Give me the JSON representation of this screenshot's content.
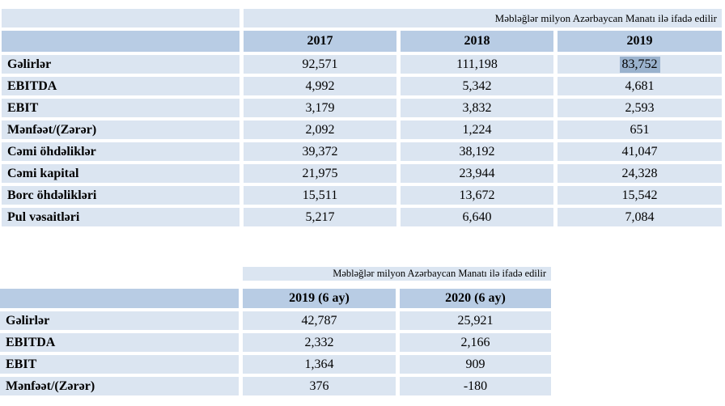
{
  "colors": {
    "page_bg": "#ffffff",
    "header_bg": "#b8cce4",
    "row_bg": "#dbe5f1",
    "note_bg": "#dbe5f1",
    "selection_bg": "#9ab2cd",
    "text": "#000000"
  },
  "table1": {
    "note": "Məbləğlər milyon Azərbaycan Manatı ilə ifadə edilir",
    "columns": [
      "2017",
      "2018",
      "2019"
    ],
    "rows": [
      {
        "label": "Gəlirlər",
        "values": [
          "92,571",
          "111,198",
          "83,752"
        ]
      },
      {
        "label": "EBITDA",
        "values": [
          "4,992",
          "5,342",
          "4,681"
        ]
      },
      {
        "label": "EBIT",
        "values": [
          "3,179",
          "3,832",
          "2,593"
        ]
      },
      {
        "label": "Mənfəət/(Zərər)",
        "values": [
          "2,092",
          "1,224",
          "651"
        ]
      },
      {
        "label": "Cəmi öhdəliklər",
        "values": [
          "39,372",
          "38,192",
          "41,047"
        ]
      },
      {
        "label": "Cəmi kapital",
        "values": [
          "21,975",
          "23,944",
          "24,328"
        ]
      },
      {
        "label": "Borc öhdəlikləri",
        "values": [
          "15,511",
          "13,672",
          "15,542"
        ]
      },
      {
        "label": "Pul vəsaitləri",
        "values": [
          "5,217",
          "6,640",
          "7,084"
        ]
      }
    ],
    "selection": {
      "row": "Gəlirlər",
      "column": "2019",
      "value": "83,752"
    }
  },
  "table2": {
    "note": "Məbləğlər milyon Azərbaycan Manatı ilə ifadə edilir",
    "columns": [
      "2019 (6 ay)",
      "2020 (6 ay)"
    ],
    "rows": [
      {
        "label": "Gəlirlər",
        "values": [
          "42,787",
          "25,921"
        ]
      },
      {
        "label": "EBITDA",
        "values": [
          "2,332",
          "2,166"
        ]
      },
      {
        "label": "EBIT",
        "values": [
          "1,364",
          "909"
        ]
      },
      {
        "label": "Mənfəət/(Zərər)",
        "values": [
          "376",
          "-180"
        ]
      }
    ]
  }
}
